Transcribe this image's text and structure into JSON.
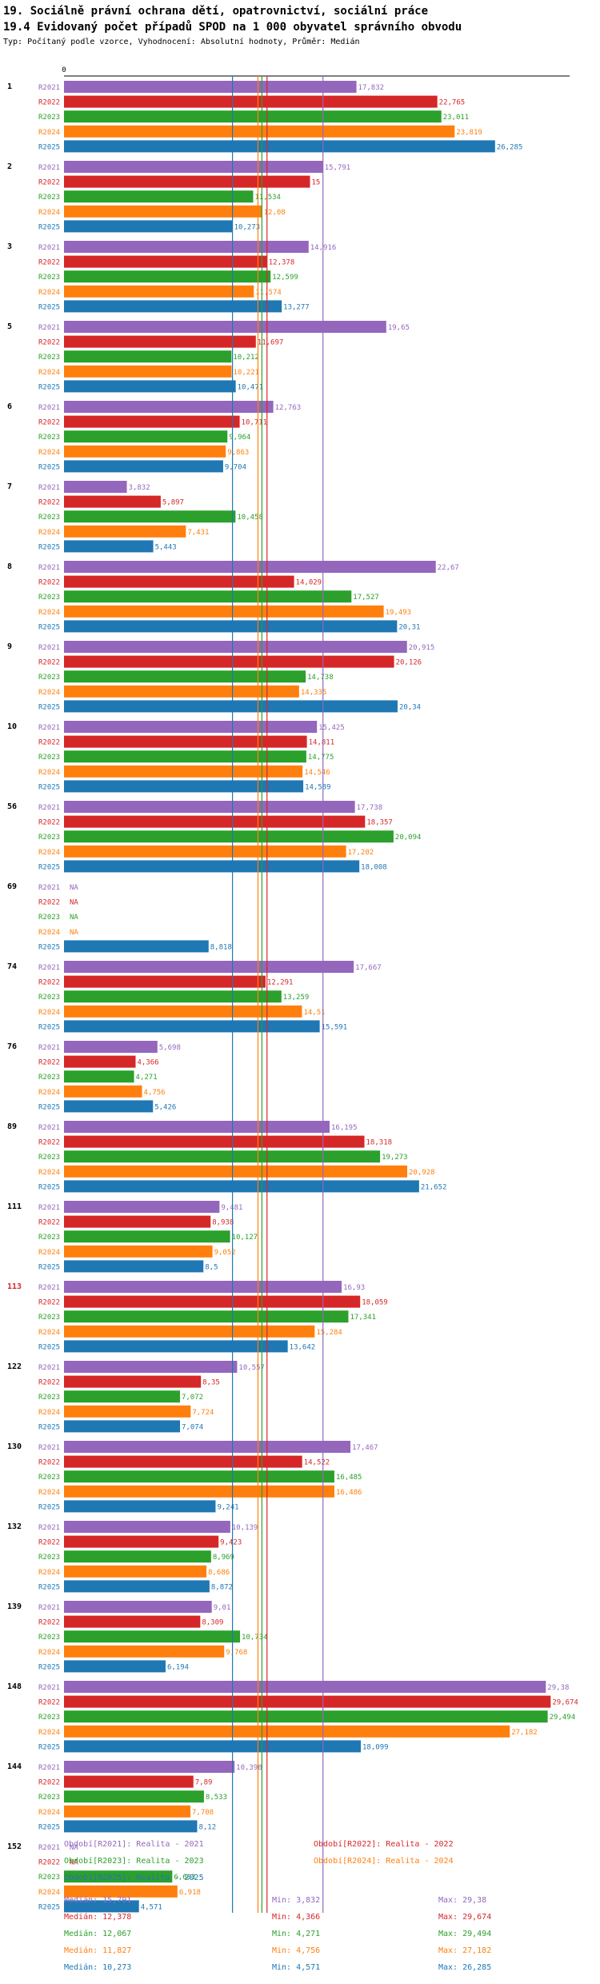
{
  "header": {
    "title": "19. Sociálně právní ochrana dětí, opatrovnictví, sociální práce",
    "subtitle": "19.4 Evidovaný počet případů SPOD na 1 000 obyvatel správního obvodu",
    "note": "Typ: Počítaný podle vzorce, Vyhodnocení: Absolutní hodnoty, Průměr: Medián"
  },
  "chart_data": {
    "type": "bar",
    "orientation": "horizontal",
    "axis_zero_label": "0",
    "xlim": [
      0,
      30
    ],
    "series": [
      {
        "key": "R2021",
        "name": "Realita - 2021",
        "color": "#9467bd",
        "median": 15.791,
        "median_label": "15,791",
        "min_label": "3,832",
        "max_label": "29,38"
      },
      {
        "key": "R2022",
        "name": "Realita - 2022",
        "color": "#d62728",
        "median": 12.378,
        "median_label": "12,378",
        "min_label": "4,366",
        "max_label": "29,674"
      },
      {
        "key": "R2023",
        "name": "Realita - 2023",
        "color": "#2ca02c",
        "median": 12.067,
        "median_label": "12,067",
        "min_label": "4,271",
        "max_label": "29,494"
      },
      {
        "key": "R2024",
        "name": "Realita - 2024",
        "color": "#ff7f0e",
        "median": 11.827,
        "median_label": "11,827",
        "min_label": "4,756",
        "max_label": "27,182"
      },
      {
        "key": "R2025",
        "name": "Realita - 2025",
        "color": "#1f77b4",
        "median": 10.273,
        "median_label": "10,273",
        "min_label": "4,571",
        "max_label": "26,285"
      }
    ],
    "categories": [
      {
        "name": "1",
        "highlight": false,
        "values": [
          17.832,
          22.765,
          23.011,
          23.819,
          26.285
        ],
        "labels": [
          "17,832",
          "22,765",
          "23,011",
          "23,819",
          "26,285"
        ]
      },
      {
        "name": "2",
        "highlight": false,
        "values": [
          15.791,
          15,
          11.534,
          12.08,
          10.273
        ],
        "labels": [
          "15,791",
          "15",
          "11,534",
          "12,08",
          "10,273"
        ]
      },
      {
        "name": "3",
        "highlight": false,
        "values": [
          14.916,
          12.378,
          12.599,
          11.574,
          13.277
        ],
        "labels": [
          "14,916",
          "12,378",
          "12,599",
          "11,574",
          "13,277"
        ]
      },
      {
        "name": "5",
        "highlight": false,
        "values": [
          19.65,
          11.697,
          10.212,
          10.221,
          10.471
        ],
        "labels": [
          "19,65",
          "11,697",
          "10,212",
          "10,221",
          "10,471"
        ]
      },
      {
        "name": "6",
        "highlight": false,
        "values": [
          12.763,
          10.711,
          9.964,
          9.863,
          9.704
        ],
        "labels": [
          "12,763",
          "10,711",
          "9,964",
          "9,863",
          "9,704"
        ]
      },
      {
        "name": "7",
        "highlight": false,
        "values": [
          3.832,
          5.897,
          10.458,
          7.431,
          5.443
        ],
        "labels": [
          "3,832",
          "5,897",
          "10,458",
          "7,431",
          "5,443"
        ]
      },
      {
        "name": "8",
        "highlight": false,
        "values": [
          22.67,
          14.029,
          17.527,
          19.493,
          20.31
        ],
        "labels": [
          "22,67",
          "14,029",
          "17,527",
          "19,493",
          "20,31"
        ]
      },
      {
        "name": "9",
        "highlight": false,
        "values": [
          20.915,
          20.126,
          14.738,
          14.335,
          20.34
        ],
        "labels": [
          "20,915",
          "20,126",
          "14,738",
          "14,335",
          "20,34"
        ]
      },
      {
        "name": "10",
        "highlight": false,
        "values": [
          15.425,
          14.811,
          14.775,
          14.546,
          14.589
        ],
        "labels": [
          "15,425",
          "14,811",
          "14,775",
          "14,546",
          "14,589"
        ]
      },
      {
        "name": "56",
        "highlight": false,
        "values": [
          17.738,
          18.357,
          20.094,
          17.202,
          18.008
        ],
        "labels": [
          "17,738",
          "18,357",
          "20,094",
          "17,202",
          "18,008"
        ]
      },
      {
        "name": "69",
        "highlight": false,
        "values": [
          null,
          null,
          null,
          null,
          8.818
        ],
        "labels": [
          "NA",
          "NA",
          "NA",
          "NA",
          "8,818"
        ]
      },
      {
        "name": "74",
        "highlight": false,
        "values": [
          17.667,
          12.291,
          13.259,
          14.51,
          15.591
        ],
        "labels": [
          "17,667",
          "12,291",
          "13,259",
          "14,51",
          "15,591"
        ]
      },
      {
        "name": "76",
        "highlight": false,
        "values": [
          5.698,
          4.366,
          4.271,
          4.756,
          5.426
        ],
        "labels": [
          "5,698",
          "4,366",
          "4,271",
          "4,756",
          "5,426"
        ]
      },
      {
        "name": "89",
        "highlight": false,
        "values": [
          16.195,
          18.318,
          19.273,
          20.928,
          21.652
        ],
        "labels": [
          "16,195",
          "18,318",
          "19,273",
          "20,928",
          "21,652"
        ]
      },
      {
        "name": "111",
        "highlight": false,
        "values": [
          9.481,
          8.938,
          10.127,
          9.052,
          8.5
        ],
        "labels": [
          "9,481",
          "8,938",
          "10,127",
          "9,052",
          "8,5"
        ]
      },
      {
        "name": "113",
        "highlight": true,
        "values": [
          16.93,
          18.059,
          17.341,
          15.284,
          13.642
        ],
        "labels": [
          "16,93",
          "18,059",
          "17,341",
          "15,284",
          "13,642"
        ]
      },
      {
        "name": "122",
        "highlight": false,
        "values": [
          10.557,
          8.35,
          7.072,
          7.724,
          7.074
        ],
        "labels": [
          "10,557",
          "8,35",
          "7,072",
          "7,724",
          "7,074"
        ]
      },
      {
        "name": "130",
        "highlight": false,
        "values": [
          17.467,
          14.522,
          16.485,
          16.486,
          9.241
        ],
        "labels": [
          "17,467",
          "14,522",
          "16,485",
          "16,486",
          "9,241"
        ]
      },
      {
        "name": "132",
        "highlight": false,
        "values": [
          10.139,
          9.423,
          8.969,
          8.686,
          8.872
        ],
        "labels": [
          "10,139",
          "9,423",
          "8,969",
          "8,686",
          "8,872"
        ]
      },
      {
        "name": "139",
        "highlight": false,
        "values": [
          9.01,
          8.309,
          10.734,
          9.768,
          6.194
        ],
        "labels": [
          "9,01",
          "8,309",
          "10,734",
          "9,768",
          "6,194"
        ]
      },
      {
        "name": "148",
        "highlight": false,
        "values": [
          29.38,
          29.674,
          29.494,
          27.182,
          18.099
        ],
        "labels": [
          "29,38",
          "29,674",
          "29,494",
          "27,182",
          "18,099"
        ]
      },
      {
        "name": "144",
        "highlight": false,
        "values": [
          10.398,
          7.89,
          8.533,
          7.708,
          8.12
        ],
        "labels": [
          "10,398",
          "7,89",
          "8,533",
          "7,708",
          "8,12"
        ]
      },
      {
        "name": "152",
        "highlight": false,
        "values": [
          null,
          null,
          6.603,
          6.918,
          4.571
        ],
        "labels": [
          "NA",
          "NA",
          "6,603",
          "6,918",
          "4,571"
        ]
      }
    ]
  },
  "legend": {
    "prefix": "Období",
    "stat_labels": {
      "median": "Medián:",
      "min": "Min:",
      "max": "Max:"
    }
  }
}
